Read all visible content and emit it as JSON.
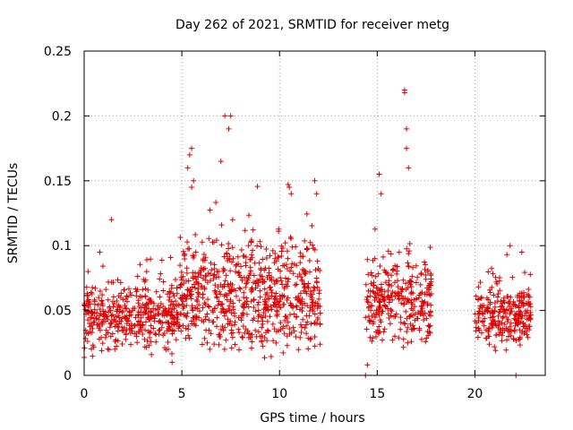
{
  "chart_data": {
    "type": "scatter",
    "title": "Day 262 of 2021, SRMTID for receiver metg",
    "xlabel": "GPS time / hours",
    "ylabel": "SRMTID / TECUs",
    "xlim": [
      0,
      23.6
    ],
    "ylim": [
      0,
      0.25
    ],
    "xticks": [
      0,
      5,
      10,
      15,
      20
    ],
    "xtick_labels": [
      "0",
      "5",
      "10",
      "15",
      "20"
    ],
    "yticks": [
      0,
      0.05,
      0.1,
      0.15,
      0.2,
      0.25
    ],
    "ytick_labels": [
      "0",
      "0.05",
      "0.1",
      "0.15",
      "0.2",
      "0.25"
    ],
    "grid": true,
    "marker": "+",
    "color": "#e00000",
    "series": [
      {
        "name": "SRMTID",
        "segments": [
          {
            "x_range": [
              0.0,
              4.9
            ],
            "baseline": 0.045,
            "spread": 0.035,
            "count": 420
          },
          {
            "x_range": [
              4.9,
              12.1
            ],
            "baseline": 0.06,
            "spread": 0.06,
            "count": 700
          },
          {
            "x_range": [
              14.4,
              17.8
            ],
            "baseline": 0.058,
            "spread": 0.05,
            "count": 300
          },
          {
            "x_range": [
              20.0,
              22.9
            ],
            "baseline": 0.045,
            "spread": 0.035,
            "count": 260
          }
        ],
        "x": [
          5.3,
          5.4,
          5.5,
          5.5,
          5.6,
          7.0,
          7.2,
          7.4,
          7.5,
          7.6,
          10.5,
          10.6,
          11.8,
          11.9,
          16.4,
          16.4,
          16.5,
          16.5,
          16.6,
          15.1,
          15.2,
          14.5,
          14.4,
          20.0,
          22.1,
          21.8,
          22.4,
          0.2,
          0.8,
          1.4,
          3.2,
          4.5
        ],
        "y": [
          0.16,
          0.17,
          0.175,
          0.145,
          0.15,
          0.165,
          0.2,
          0.19,
          0.2,
          0.12,
          0.145,
          0.14,
          0.15,
          0.14,
          0.22,
          0.218,
          0.19,
          0.175,
          0.16,
          0.155,
          0.14,
          0.008,
          0.0,
          0.0,
          0.0,
          0.1,
          0.095,
          0.08,
          0.095,
          0.12,
          0.08,
          0.01
        ]
      }
    ]
  }
}
